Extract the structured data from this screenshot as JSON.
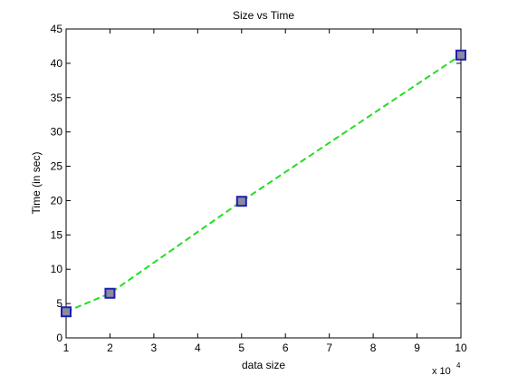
{
  "chart_data": {
    "type": "line",
    "title": "Size vs Time",
    "xlabel": "data size",
    "ylabel": "Time (in sec)",
    "x_exponent_base": "x 10",
    "x_exponent_power": "4",
    "xlim": [
      1,
      10
    ],
    "ylim": [
      0,
      45
    ],
    "x_ticks": [
      1,
      2,
      3,
      4,
      5,
      6,
      7,
      8,
      9,
      10
    ],
    "y_ticks": [
      0,
      5,
      10,
      15,
      20,
      25,
      30,
      35,
      40,
      45
    ],
    "grid": false,
    "series": [
      {
        "x": [
          1,
          2,
          5,
          10
        ],
        "y": [
          3.8,
          6.5,
          19.9,
          41.2
        ],
        "line_color": "#22dd22",
        "line_style": "dashed",
        "marker": "square",
        "marker_face": "#8a8aa0",
        "marker_edge": "#1f1fb0"
      }
    ]
  }
}
